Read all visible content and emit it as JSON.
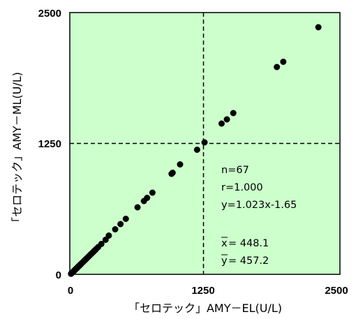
{
  "chart_data": {
    "type": "scatter",
    "title": "",
    "xlabel": "「セロテック」AMY－EL(U/L)",
    "ylabel": "「セロテック」AMY－ML(U/L)",
    "xlim": [
      0,
      2500
    ],
    "ylim": [
      0,
      2500
    ],
    "x_ticks": [
      "0",
      "1250",
      "2500"
    ],
    "y_ticks": [
      "0",
      "1250",
      "2500"
    ],
    "reference_lines": {
      "x": 1250,
      "y": 1250,
      "style": "dashed"
    },
    "colors": {
      "plot_background": "#ccffcc",
      "points": "#000000"
    },
    "grid": false,
    "legend": "none",
    "stats": {
      "n": "n=67",
      "r": "r=1.000",
      "equation": "y=1.023x-1.65",
      "xbar_symbol": "x",
      "xbar_value": "= 448.1",
      "ybar_symbol": "y",
      "ybar_value": "= 457.2"
    },
    "series": [
      {
        "x": [
          5,
          10,
          15,
          20,
          25,
          30,
          35,
          40,
          45,
          50,
          55,
          60,
          65,
          70,
          75,
          80,
          85,
          90,
          95,
          100,
          110,
          120,
          130,
          140,
          150,
          160,
          170,
          180,
          190,
          200,
          210,
          220,
          230,
          240,
          260,
          290,
          330,
          360,
          420,
          470,
          520,
          630,
          690,
          720,
          770,
          950,
          960,
          1030,
          1190,
          1260,
          1420,
          1470,
          1530,
          1940,
          2000,
          2330
        ],
        "y": [
          5,
          10,
          15,
          20,
          25,
          30,
          35,
          40,
          45,
          50,
          55,
          60,
          65,
          70,
          75,
          80,
          85,
          90,
          95,
          100,
          110,
          120,
          130,
          140,
          150,
          160,
          170,
          180,
          190,
          200,
          210,
          220,
          230,
          240,
          260,
          290,
          330,
          370,
          430,
          480,
          530,
          640,
          700,
          730,
          780,
          960,
          970,
          1050,
          1190,
          1260,
          1440,
          1480,
          1540,
          1980,
          2030,
          2360
        ]
      }
    ]
  }
}
